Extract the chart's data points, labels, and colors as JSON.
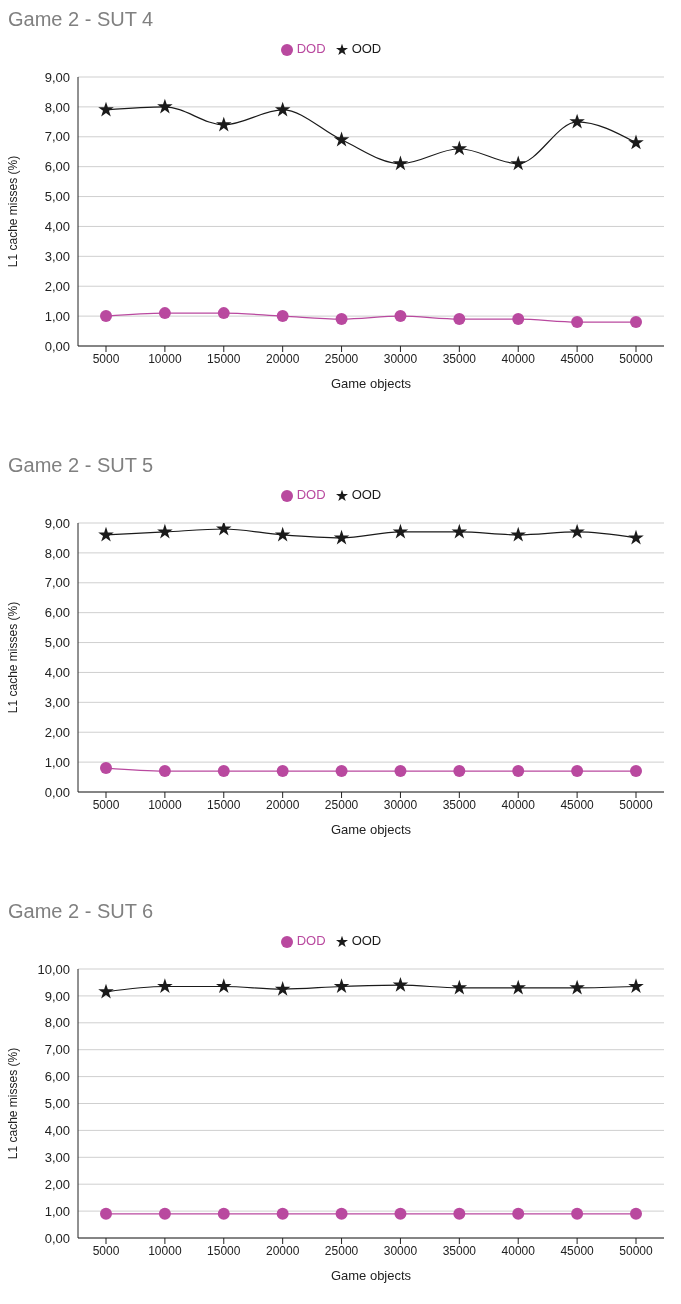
{
  "chart_data": [
    {
      "type": "line",
      "title": "Game 2 - SUT 4",
      "xlabel": "Game objects",
      "ylabel": "L1 cache misses (%)",
      "categories": [
        "5000",
        "10000",
        "15000",
        "20000",
        "25000",
        "30000",
        "35000",
        "40000",
        "45000",
        "50000"
      ],
      "series": [
        {
          "name": "DOD",
          "color": "#b9499f",
          "marker": "circle",
          "values": [
            1.0,
            1.1,
            1.1,
            1.0,
            0.9,
            1.0,
            0.9,
            0.9,
            0.8,
            0.8
          ]
        },
        {
          "name": "OOD",
          "color": "#1a1a1a",
          "marker": "star",
          "values": [
            7.9,
            8.0,
            7.4,
            7.9,
            6.9,
            6.1,
            6.6,
            6.1,
            7.5,
            6.8
          ]
        }
      ],
      "ylim": [
        0,
        9
      ],
      "yticks": [
        {
          "value": 0,
          "label": "0,00"
        },
        {
          "value": 1,
          "label": "1,00"
        },
        {
          "value": 2,
          "label": "2,00"
        },
        {
          "value": 3,
          "label": "3,00"
        },
        {
          "value": 4,
          "label": "4,00"
        },
        {
          "value": 5,
          "label": "5,00"
        },
        {
          "value": 6,
          "label": "6,00"
        },
        {
          "value": 7,
          "label": "7,00"
        },
        {
          "value": 8,
          "label": "8,00"
        },
        {
          "value": 9,
          "label": "9,00"
        }
      ],
      "grid": "y",
      "legend": "top",
      "line_style": "solid"
    },
    {
      "type": "line",
      "title": "Game 2 - SUT 5",
      "xlabel": "Game objects",
      "ylabel": "L1 cache misses (%)",
      "categories": [
        "5000",
        "10000",
        "15000",
        "20000",
        "25000",
        "30000",
        "35000",
        "40000",
        "45000",
        "50000"
      ],
      "series": [
        {
          "name": "DOD",
          "color": "#b9499f",
          "marker": "circle",
          "values": [
            0.8,
            0.7,
            0.7,
            0.7,
            0.7,
            0.7,
            0.7,
            0.7,
            0.7,
            0.7
          ]
        },
        {
          "name": "OOD",
          "color": "#1a1a1a",
          "marker": "star",
          "values": [
            8.6,
            8.7,
            8.8,
            8.6,
            8.5,
            8.7,
            8.7,
            8.6,
            8.7,
            8.5
          ]
        }
      ],
      "ylim": [
        0,
        9
      ],
      "yticks": [
        {
          "value": 0,
          "label": "0,00"
        },
        {
          "value": 1,
          "label": "1,00"
        },
        {
          "value": 2,
          "label": "2,00"
        },
        {
          "value": 3,
          "label": "3,00"
        },
        {
          "value": 4,
          "label": "4,00"
        },
        {
          "value": 5,
          "label": "5,00"
        },
        {
          "value": 6,
          "label": "6,00"
        },
        {
          "value": 7,
          "label": "7,00"
        },
        {
          "value": 8,
          "label": "8,00"
        },
        {
          "value": 9,
          "label": "9,00"
        }
      ],
      "grid": "y",
      "legend": "top",
      "line_style": "solid"
    },
    {
      "type": "line",
      "title": "Game 2 - SUT 6",
      "xlabel": "Game objects",
      "ylabel": "L1 cache misses (%)",
      "categories": [
        "5000",
        "10000",
        "15000",
        "20000",
        "25000",
        "30000",
        "35000",
        "40000",
        "45000",
        "50000"
      ],
      "series": [
        {
          "name": "DOD",
          "color": "#b9499f",
          "marker": "circle",
          "values": [
            0.9,
            0.9,
            0.9,
            0.9,
            0.9,
            0.9,
            0.9,
            0.9,
            0.9,
            0.9
          ]
        },
        {
          "name": "OOD",
          "color": "#1a1a1a",
          "marker": "star",
          "values": [
            9.15,
            9.35,
            9.35,
            9.25,
            9.35,
            9.4,
            9.3,
            9.3,
            9.3,
            9.35
          ]
        }
      ],
      "ylim": [
        0,
        10
      ],
      "yticks": [
        {
          "value": 0,
          "label": "0,00"
        },
        {
          "value": 1,
          "label": "1,00"
        },
        {
          "value": 2,
          "label": "2,00"
        },
        {
          "value": 3,
          "label": "3,00"
        },
        {
          "value": 4,
          "label": "4,00"
        },
        {
          "value": 5,
          "label": "5,00"
        },
        {
          "value": 6,
          "label": "6,00"
        },
        {
          "value": 7,
          "label": "7,00"
        },
        {
          "value": 8,
          "label": "8,00"
        },
        {
          "value": 9,
          "label": "9,00"
        },
        {
          "value": 10,
          "label": "10,00"
        }
      ],
      "grid": "y",
      "legend": "top",
      "line_style": "solid"
    }
  ]
}
